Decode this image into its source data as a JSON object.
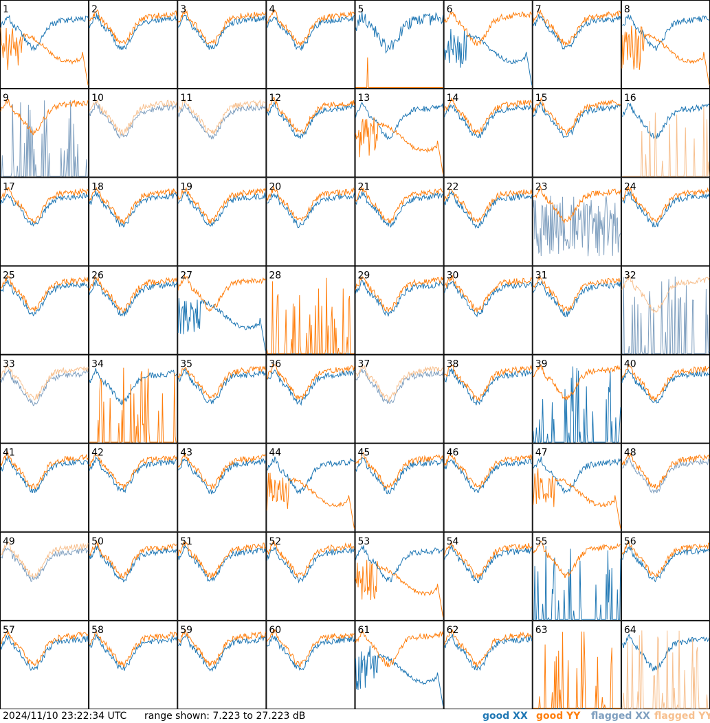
{
  "chart_data": {
    "type": "line",
    "title": "",
    "panels_count": 64,
    "grid": {
      "rows": 8,
      "cols": 8
    },
    "ylim": [
      7.223,
      27.223
    ],
    "timestamp": "2024/11/10 23:22:34 UTC",
    "range_prefix": "range shown:",
    "range_from": "7.223",
    "range_to": "27.223",
    "range_unit": "dB",
    "range_label": "range shown: 7.223 to 27.223 dB",
    "legend": [
      {
        "id": "good_xx",
        "label": "good XX",
        "color": "#1f77b4"
      },
      {
        "id": "good_yy",
        "label": "good YY",
        "color": "#ff7f0e"
      },
      {
        "id": "flagged_xx",
        "label": "flagged XX",
        "color": "#7f9fbf"
      },
      {
        "id": "flagged_yy",
        "label": "flagged YY",
        "color": "#f7c08f"
      }
    ],
    "panels": [
      {
        "n": 1,
        "xx": "good",
        "yy": "degraded"
      },
      {
        "n": 2,
        "xx": "good",
        "yy": "good"
      },
      {
        "n": 3,
        "xx": "good",
        "yy": "good"
      },
      {
        "n": 4,
        "xx": "good",
        "yy": "good"
      },
      {
        "n": 5,
        "xx": "noisy",
        "yy": "dead_spike"
      },
      {
        "n": 6,
        "xx": "degraded",
        "yy": "good"
      },
      {
        "n": 7,
        "xx": "good",
        "yy": "good"
      },
      {
        "n": 8,
        "xx": "good",
        "yy": "degraded"
      },
      {
        "n": 9,
        "xx": "flagged_spikes",
        "yy": "good"
      },
      {
        "n": 10,
        "xx": "flagged",
        "yy": "flagged"
      },
      {
        "n": 11,
        "xx": "flagged",
        "yy": "flagged"
      },
      {
        "n": 12,
        "xx": "good",
        "yy": "good"
      },
      {
        "n": 13,
        "xx": "good",
        "yy": "degraded"
      },
      {
        "n": 14,
        "xx": "good",
        "yy": "good"
      },
      {
        "n": 15,
        "xx": "good",
        "yy": "good"
      },
      {
        "n": 16,
        "xx": "good",
        "yy": "flagged_spikes"
      },
      {
        "n": 17,
        "xx": "good",
        "yy": "good"
      },
      {
        "n": 18,
        "xx": "good",
        "yy": "good"
      },
      {
        "n": 19,
        "xx": "good",
        "yy": "good"
      },
      {
        "n": 20,
        "xx": "good",
        "yy": "good"
      },
      {
        "n": 21,
        "xx": "good",
        "yy": "good"
      },
      {
        "n": 22,
        "xx": "good",
        "yy": "good"
      },
      {
        "n": 23,
        "xx": "flagged_noisy",
        "yy": "good"
      },
      {
        "n": 24,
        "xx": "good",
        "yy": "good"
      },
      {
        "n": 25,
        "xx": "good",
        "yy": "good"
      },
      {
        "n": 26,
        "xx": "good",
        "yy": "good"
      },
      {
        "n": 27,
        "xx": "degraded",
        "yy": "good"
      },
      {
        "n": 28,
        "xx": "dead",
        "yy": "spikes"
      },
      {
        "n": 29,
        "xx": "good",
        "yy": "good"
      },
      {
        "n": 30,
        "xx": "good",
        "yy": "good"
      },
      {
        "n": 31,
        "xx": "good",
        "yy": "good"
      },
      {
        "n": 32,
        "xx": "flagged_spikes",
        "yy": "flagged"
      },
      {
        "n": 33,
        "xx": "flagged",
        "yy": "flagged"
      },
      {
        "n": 34,
        "xx": "good",
        "yy": "spikes"
      },
      {
        "n": 35,
        "xx": "good",
        "yy": "good"
      },
      {
        "n": 36,
        "xx": "good",
        "yy": "good"
      },
      {
        "n": 37,
        "xx": "flagged",
        "yy": "flagged"
      },
      {
        "n": 38,
        "xx": "good",
        "yy": "good"
      },
      {
        "n": 39,
        "xx": "spikes",
        "yy": "good"
      },
      {
        "n": 40,
        "xx": "good",
        "yy": "good"
      },
      {
        "n": 41,
        "xx": "good",
        "yy": "good"
      },
      {
        "n": 42,
        "xx": "good",
        "yy": "good"
      },
      {
        "n": 43,
        "xx": "good",
        "yy": "good"
      },
      {
        "n": 44,
        "xx": "good",
        "yy": "degraded"
      },
      {
        "n": 45,
        "xx": "good",
        "yy": "good"
      },
      {
        "n": 46,
        "xx": "good",
        "yy": "good"
      },
      {
        "n": 47,
        "xx": "good",
        "yy": "degraded"
      },
      {
        "n": 48,
        "xx": "flagged",
        "yy": "good"
      },
      {
        "n": 49,
        "xx": "flagged",
        "yy": "flagged"
      },
      {
        "n": 50,
        "xx": "good",
        "yy": "good"
      },
      {
        "n": 51,
        "xx": "good",
        "yy": "good"
      },
      {
        "n": 52,
        "xx": "good",
        "yy": "good"
      },
      {
        "n": 53,
        "xx": "good",
        "yy": "degraded"
      },
      {
        "n": 54,
        "xx": "good",
        "yy": "good"
      },
      {
        "n": 55,
        "xx": "spikes",
        "yy": "good"
      },
      {
        "n": 56,
        "xx": "good",
        "yy": "good"
      },
      {
        "n": 57,
        "xx": "good",
        "yy": "good"
      },
      {
        "n": 58,
        "xx": "good",
        "yy": "good"
      },
      {
        "n": 59,
        "xx": "good",
        "yy": "good"
      },
      {
        "n": 60,
        "xx": "good",
        "yy": "good"
      },
      {
        "n": 61,
        "xx": "degraded",
        "yy": "good"
      },
      {
        "n": 62,
        "xx": "good",
        "yy": "good"
      },
      {
        "n": 63,
        "xx": "dead",
        "yy": "spikes"
      },
      {
        "n": 64,
        "xx": "good",
        "yy": "flagged_spikes"
      }
    ]
  }
}
